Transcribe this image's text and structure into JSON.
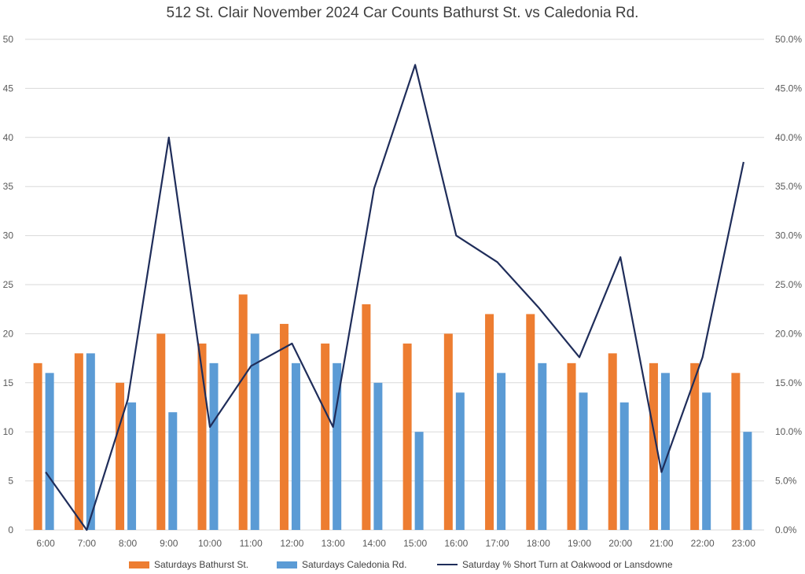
{
  "chart_data": {
    "type": "bar",
    "title": "512 St. Clair November 2024 Car Counts Bathurst St. vs Caledonia Rd.",
    "categories": [
      "6:00",
      "7:00",
      "8:00",
      "9:00",
      "10:00",
      "11:00",
      "12:00",
      "13:00",
      "14:00",
      "15:00",
      "16:00",
      "17:00",
      "18:00",
      "19:00",
      "20:00",
      "21:00",
      "22:00",
      "23:00"
    ],
    "series": [
      {
        "name": "Saturdays Bathurst St.",
        "type": "bar",
        "axis": "left",
        "color": "#ED7D31",
        "values": [
          17,
          18,
          15,
          20,
          19,
          24,
          21,
          19,
          23,
          19,
          20,
          22,
          22,
          17,
          18,
          17,
          17,
          16
        ]
      },
      {
        "name": "Saturdays Caledonia Rd.",
        "type": "bar",
        "axis": "left",
        "color": "#5B9BD5",
        "values": [
          16,
          18,
          13,
          12,
          17,
          20,
          17,
          17,
          15,
          10,
          14,
          16,
          17,
          14,
          13,
          16,
          14,
          10
        ]
      },
      {
        "name": "Saturday % Short Turn at Oakwood or Lansdowne",
        "type": "line",
        "axis": "right",
        "color": "#1F2D5A",
        "values": [
          5.9,
          0.0,
          13.3,
          40.0,
          10.5,
          16.7,
          19.0,
          10.5,
          34.8,
          47.4,
          30.0,
          27.3,
          22.7,
          17.6,
          27.8,
          5.9,
          17.6,
          37.5
        ]
      }
    ],
    "ylim": [
      0,
      50
    ],
    "yticks": [
      "0",
      "5",
      "10",
      "15",
      "20",
      "25",
      "30",
      "35",
      "40",
      "45",
      "50"
    ],
    "y2lim": [
      0,
      50
    ],
    "y2ticks": [
      "0.0%",
      "5.0%",
      "10.0%",
      "15.0%",
      "20.0%",
      "25.0%",
      "30.0%",
      "35.0%",
      "40.0%",
      "45.0%",
      "50.0%"
    ],
    "grid": true,
    "legend_position": "bottom"
  }
}
